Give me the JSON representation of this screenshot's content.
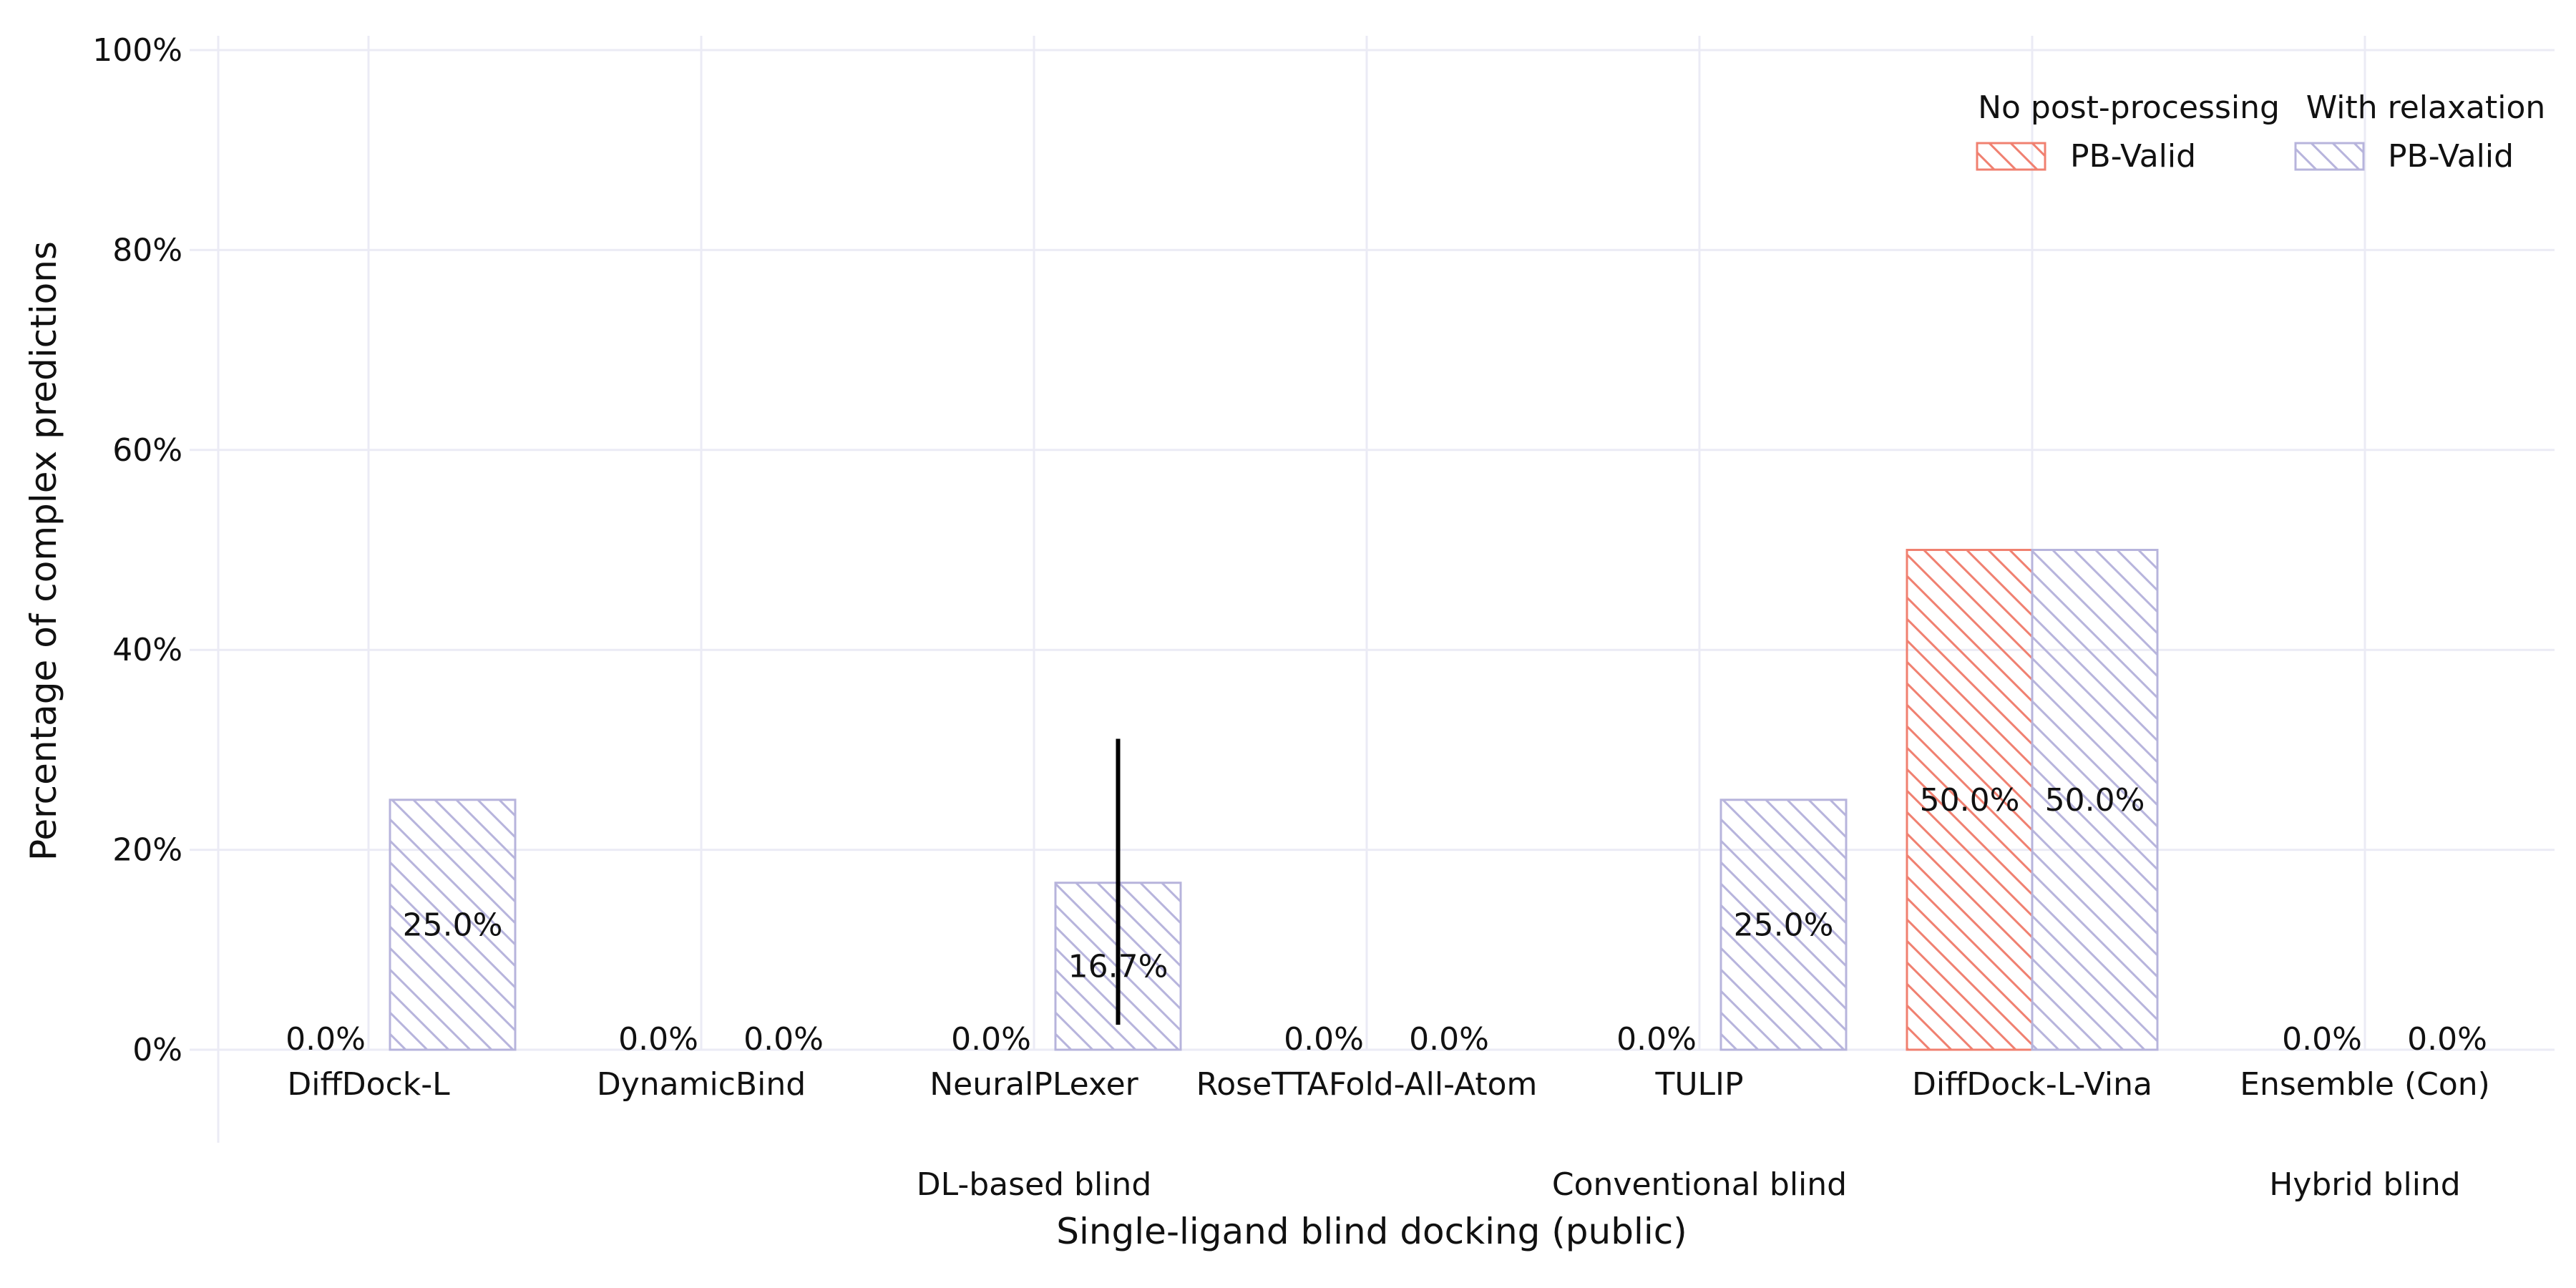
{
  "chart_data": {
    "type": "bar",
    "title": "",
    "xlabel": "Single-ligand blind docking (public)",
    "ylabel": "Percentage of complex predictions",
    "ylim": [
      0,
      100
    ],
    "y_ticks": [
      "0%",
      "20%",
      "40%",
      "60%",
      "80%",
      "100%"
    ],
    "grid": true,
    "categories": [
      "DiffDock-L",
      "DynamicBind",
      "NeuralPLexer",
      "RoseTTAFold-All-Atom",
      "TULIP",
      "DiffDock-L-Vina",
      "Ensemble (Con)"
    ],
    "groups": [
      {
        "label": "DL-based blind",
        "center": 3
      },
      {
        "label": "Conventional blind",
        "center": 5
      },
      {
        "label": "Hybrid blind",
        "center": 7
      }
    ],
    "series": [
      {
        "name": "PB-Valid",
        "legend_header": "No post-processing",
        "color": "#f08070",
        "hatch": "backslash",
        "values": [
          0.0,
          0.0,
          0.0,
          0.0,
          0.0,
          50.0,
          0.0
        ],
        "labels": [
          "0.0%",
          "0.0%",
          "0.0%",
          "0.0%",
          "0.0%",
          "50.0%",
          "0.0%"
        ]
      },
      {
        "name": "PB-Valid",
        "legend_header": "With relaxation",
        "color": "#b7b4dc",
        "hatch": "backslash",
        "values": [
          25.0,
          0.0,
          16.7,
          0.0,
          25.0,
          50.0,
          0.0
        ],
        "labels": [
          "25.0%",
          "0.0%",
          "16.7%",
          "0.0%",
          "25.0%",
          "50.0%",
          "0.0%"
        ],
        "error_bars": [
          null,
          null,
          [
            2.5,
            31.1
          ],
          null,
          null,
          null,
          null
        ]
      }
    ],
    "legend_position": "top-right"
  }
}
